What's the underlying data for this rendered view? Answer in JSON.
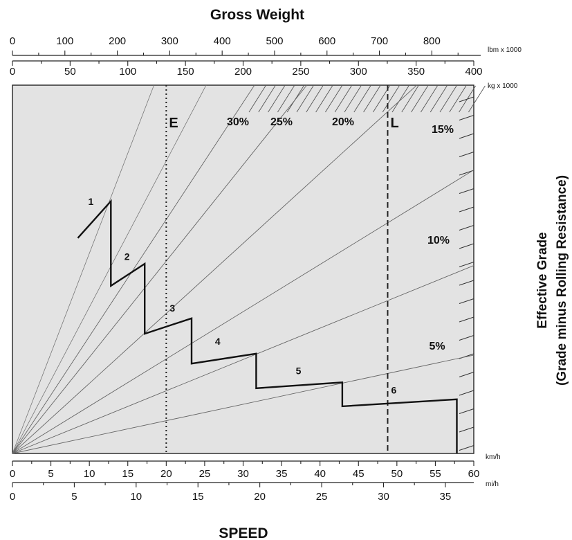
{
  "chart_data": {
    "type": "line",
    "title": "Gross Weight",
    "xlabel": "SPEED",
    "ylabel": [
      "Effective Grade",
      "(Grade minus Rolling Resistance)"
    ],
    "top_axis_lbm": {
      "unit": "lbm x 1000",
      "ticks": [
        "0",
        "100",
        "200",
        "300",
        "400",
        "500",
        "600",
        "700",
        "800"
      ],
      "range": [
        0,
        880
      ]
    },
    "top_axis_kg": {
      "unit": "kg x 1000",
      "ticks": [
        "0",
        "50",
        "100",
        "150",
        "200",
        "250",
        "300",
        "350",
        "400"
      ],
      "range": [
        0,
        400
      ]
    },
    "bottom_axis_kmh": {
      "unit": "km/h",
      "ticks": [
        "0",
        "5",
        "10",
        "15",
        "20",
        "25",
        "30",
        "35",
        "40",
        "45",
        "50",
        "55",
        "60"
      ],
      "range": [
        0,
        60
      ]
    },
    "bottom_axis_mih": {
      "unit": "mi/h",
      "ticks": [
        "0",
        "5",
        "10",
        "15",
        "20",
        "25",
        "30",
        "35"
      ],
      "range": [
        0,
        37.3
      ]
    },
    "grade_lines": [
      {
        "label": "30%",
        "slope_ratio": 1.52
      },
      {
        "label": "25%",
        "slope_ratio": 1.25
      },
      {
        "label": "20%",
        "slope_ratio": 0.91
      },
      {
        "label": "15%",
        "slope_ratio": 0.614
      },
      {
        "label": "10%",
        "slope_ratio": 0.407
      },
      {
        "label": "5%",
        "slope_ratio": 0.213
      }
    ],
    "vertical_markers": [
      {
        "label": "E",
        "kmh": 20,
        "style": "dotted"
      },
      {
        "label": "L",
        "kmh": 48.8,
        "style": "dashed"
      }
    ],
    "gear_curve": {
      "points_kmh_y": [
        [
          8.5,
          58.5
        ],
        [
          12.8,
          68.5
        ],
        [
          12.8,
          45.5
        ],
        [
          17.2,
          51.5
        ],
        [
          17.2,
          32.5
        ],
        [
          23.3,
          36.7
        ],
        [
          23.3,
          24.4
        ],
        [
          31.7,
          27.1
        ],
        [
          31.7,
          17.7
        ],
        [
          42.9,
          19.3
        ],
        [
          42.9,
          12.8
        ],
        [
          57.8,
          14.7
        ],
        [
          57.8,
          0
        ]
      ],
      "gear_labels": [
        {
          "label": "1",
          "kmh": 10.2,
          "y": 67.5
        },
        {
          "label": "2",
          "kmh": 14.9,
          "y": 52.5
        },
        {
          "label": "3",
          "kmh": 20.8,
          "y": 38.5
        },
        {
          "label": "4",
          "kmh": 26.7,
          "y": 29.5
        },
        {
          "label": "5",
          "kmh": 37.2,
          "y": 21.5
        },
        {
          "label": "6",
          "kmh": 49.6,
          "y": 16.3
        }
      ]
    },
    "grid": false
  }
}
